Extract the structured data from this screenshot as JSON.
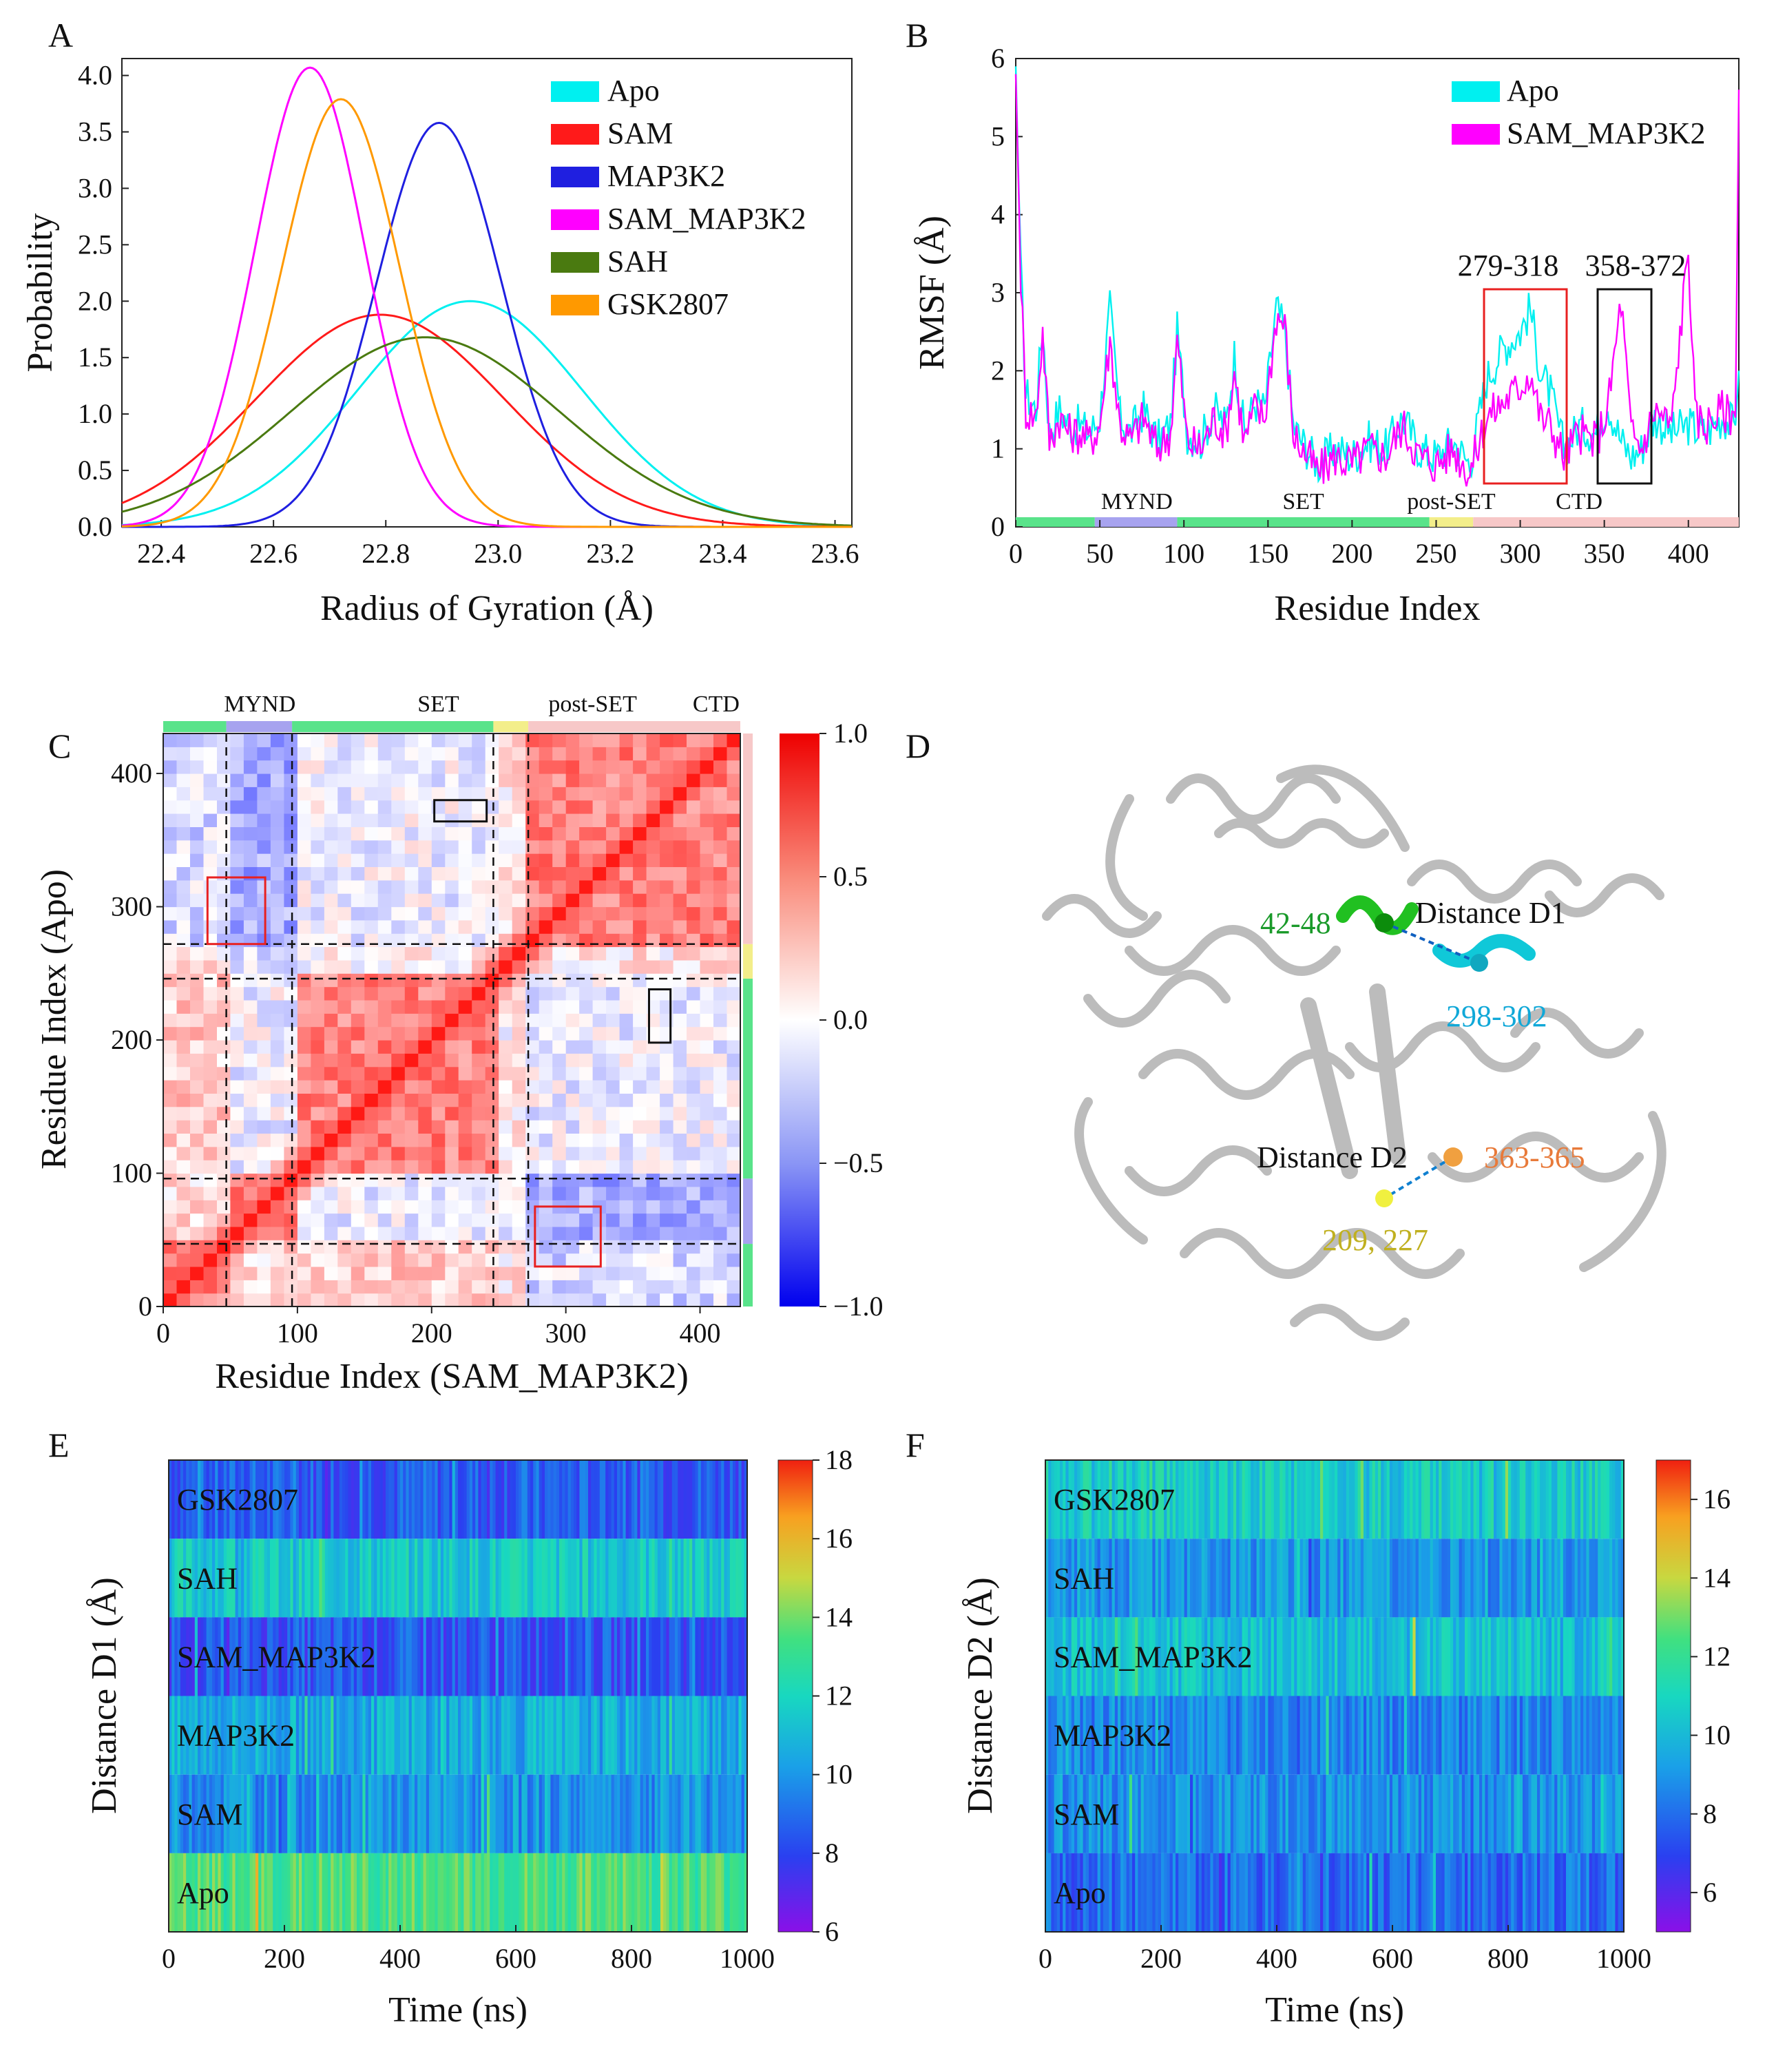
{
  "panel_letters": {
    "A": "A",
    "B": "B",
    "C": "C",
    "D": "D",
    "E": "E",
    "F": "F"
  },
  "colors": {
    "Apo": "#00f0f0",
    "SAM": "#ff1a1a",
    "MAP3K2": "#1f1fe0",
    "SAM_MAP3K2": "#ff00ff",
    "SAH": "#4a7a10",
    "GSK2807": "#ff9900",
    "dom_green": "#59e38a",
    "dom_mynd": "#a7a3ef",
    "dom_post": "#f3ee8a",
    "dom_ctd": "#f7c8c8"
  },
  "chart_data": [
    {
      "id": "A",
      "type": "line",
      "xlabel": "Radius of Gyration (Å)",
      "ylabel": "Probability",
      "xlim": [
        22.33,
        23.63
      ],
      "ylim": [
        0,
        4.15
      ],
      "xticks": [
        "22.4",
        "22.6",
        "22.8",
        "23.0",
        "23.2",
        "23.4",
        "23.6"
      ],
      "yticks": [
        "0.0",
        "0.5",
        "1.0",
        "1.5",
        "2.0",
        "2.5",
        "3.0",
        "3.5",
        "4.0"
      ],
      "series": [
        {
          "name": "Apo",
          "mean": 22.95,
          "sd": 0.2,
          "peak": 2.0
        },
        {
          "name": "SAM",
          "mean": 22.79,
          "sd": 0.22,
          "peak": 1.88
        },
        {
          "name": "MAP3K2",
          "mean": 22.895,
          "sd": 0.111,
          "peak": 3.58
        },
        {
          "name": "SAM_MAP3K2",
          "mean": 22.665,
          "sd": 0.098,
          "peak": 4.07
        },
        {
          "name": "SAH",
          "mean": 22.87,
          "sd": 0.24,
          "peak": 1.68
        },
        {
          "name": "GSK2807",
          "mean": 22.72,
          "sd": 0.105,
          "peak": 3.79
        }
      ]
    },
    {
      "id": "B",
      "type": "line",
      "xlabel": "Residue Index",
      "ylabel": "RMSF (Å)",
      "xlim": [
        0,
        430
      ],
      "ylim": [
        0,
        6
      ],
      "xticks": [
        "0",
        "50",
        "100",
        "150",
        "200",
        "250",
        "300",
        "350",
        "400"
      ],
      "yticks": [
        "0",
        "1",
        "2",
        "3",
        "4",
        "5",
        "6"
      ],
      "legend": [
        "Apo",
        "SAM_MAP3K2"
      ],
      "series": [
        {
          "name": "Apo",
          "profile": [
            [
              0,
              5.9
            ],
            [
              3,
              3.3
            ],
            [
              6,
              1.7
            ],
            [
              12,
              1.5
            ],
            [
              16,
              2.6
            ],
            [
              20,
              1.2
            ],
            [
              26,
              1.5
            ],
            [
              32,
              1.3
            ],
            [
              38,
              1.3
            ],
            [
              44,
              1.2
            ],
            [
              50,
              1.4
            ],
            [
              56,
              2.8
            ],
            [
              62,
              1.4
            ],
            [
              68,
              1.2
            ],
            [
              76,
              1.5
            ],
            [
              84,
              1.1
            ],
            [
              92,
              1.3
            ],
            [
              96,
              2.5
            ],
            [
              102,
              1.2
            ],
            [
              110,
              1.1
            ],
            [
              118,
              1.5
            ],
            [
              125,
              1.3
            ],
            [
              130,
              2.2
            ],
            [
              136,
              1.2
            ],
            [
              142,
              1.6
            ],
            [
              148,
              1.5
            ],
            [
              155,
              2.8
            ],
            [
              160,
              2.5
            ],
            [
              165,
              1.3
            ],
            [
              170,
              1.1
            ],
            [
              180,
              0.8
            ],
            [
              190,
              1.0
            ],
            [
              200,
              0.9
            ],
            [
              210,
              1.1
            ],
            [
              220,
              1.0
            ],
            [
              230,
              1.4
            ],
            [
              240,
              1.0
            ],
            [
              250,
              0.9
            ],
            [
              260,
              1.1
            ],
            [
              270,
              0.8
            ],
            [
              280,
              1.9
            ],
            [
              290,
              2.3
            ],
            [
              300,
              2.5
            ],
            [
              306,
              2.8
            ],
            [
              312,
              2.0
            ],
            [
              318,
              1.7
            ],
            [
              326,
              1.0
            ],
            [
              335,
              1.3
            ],
            [
              345,
              1.2
            ],
            [
              352,
              1.6
            ],
            [
              360,
              1.1
            ],
            [
              366,
              0.9
            ],
            [
              372,
              1.0
            ],
            [
              380,
              1.4
            ],
            [
              390,
              1.2
            ],
            [
              400,
              1.3
            ],
            [
              410,
              1.2
            ],
            [
              420,
              1.4
            ],
            [
              428,
              1.3
            ],
            [
              430,
              2.0
            ]
          ]
        },
        {
          "name": "SAM_MAP3K2",
          "profile": [
            [
              0,
              5.8
            ],
            [
              3,
              3.2
            ],
            [
              6,
              1.5
            ],
            [
              12,
              1.4
            ],
            [
              16,
              2.5
            ],
            [
              20,
              1.1
            ],
            [
              26,
              1.4
            ],
            [
              32,
              1.2
            ],
            [
              38,
              1.2
            ],
            [
              44,
              1.1
            ],
            [
              50,
              1.3
            ],
            [
              56,
              2.4
            ],
            [
              62,
              1.3
            ],
            [
              68,
              1.1
            ],
            [
              76,
              1.4
            ],
            [
              84,
              1.0
            ],
            [
              92,
              1.2
            ],
            [
              96,
              2.4
            ],
            [
              102,
              1.1
            ],
            [
              110,
              1.0
            ],
            [
              118,
              1.4
            ],
            [
              125,
              1.2
            ],
            [
              130,
              2.0
            ],
            [
              136,
              1.1
            ],
            [
              142,
              1.5
            ],
            [
              148,
              1.4
            ],
            [
              155,
              2.7
            ],
            [
              160,
              2.6
            ],
            [
              165,
              1.2
            ],
            [
              170,
              1.0
            ],
            [
              180,
              0.7
            ],
            [
              190,
              0.9
            ],
            [
              200,
              0.8
            ],
            [
              210,
              1.0
            ],
            [
              220,
              0.9
            ],
            [
              230,
              1.3
            ],
            [
              240,
              0.9
            ],
            [
              250,
              0.8
            ],
            [
              260,
              1.0
            ],
            [
              270,
              0.7
            ],
            [
              280,
              1.4
            ],
            [
              290,
              1.6
            ],
            [
              300,
              1.8
            ],
            [
              306,
              2.0
            ],
            [
              312,
              1.4
            ],
            [
              318,
              1.3
            ],
            [
              326,
              0.9
            ],
            [
              335,
              1.2
            ],
            [
              345,
              1.1
            ],
            [
              352,
              1.5
            ],
            [
              360,
              2.9
            ],
            [
              366,
              1.2
            ],
            [
              372,
              1.0
            ],
            [
              380,
              1.5
            ],
            [
              390,
              1.3
            ],
            [
              400,
              3.6
            ],
            [
              404,
              1.4
            ],
            [
              410,
              1.3
            ],
            [
              420,
              1.5
            ],
            [
              428,
              1.4
            ],
            [
              430,
              5.6
            ]
          ]
        }
      ],
      "annotations": [
        "279-318",
        "358-372"
      ],
      "domains": [
        "MYND",
        "SET",
        "post-SET",
        "CTD"
      ]
    },
    {
      "id": "C",
      "type": "heatmap",
      "xlabel": "Residue Index (SAM_MAP3K2)",
      "ylabel": "Residue Index (Apo)",
      "xlim": [
        0,
        430
      ],
      "ylim": [
        0,
        430
      ],
      "xticks": [
        "0",
        "100",
        "200",
        "300",
        "400"
      ],
      "yticks": [
        "0",
        "100",
        "200",
        "300",
        "400"
      ],
      "colorbar": {
        "min": -1.0,
        "max": 1.0,
        "ticks": [
          "1.0",
          "0.5",
          "0.0",
          "−0.5",
          "−1.0"
        ]
      },
      "domains": [
        "MYND",
        "SET",
        "post-SET",
        "CTD"
      ],
      "boundaries": [
        47,
        96,
        246,
        272
      ]
    },
    {
      "id": "E",
      "type": "heatmap",
      "xlabel": "Time (ns)",
      "ylabel": "Distance D1 (Å)",
      "xlim": [
        0,
        1000
      ],
      "xticks": [
        "0",
        "200",
        "400",
        "600",
        "800",
        "1000"
      ],
      "rows": [
        "GSK2807",
        "SAH",
        "SAM_MAP3K2",
        "MAP3K2",
        "SAM",
        "Apo"
      ],
      "row_means": [
        8.6,
        11.5,
        8.4,
        10.6,
        9.9,
        13.4
      ],
      "colorbar": {
        "min": 6,
        "max": 18,
        "ticks": [
          "18",
          "16",
          "14",
          "12",
          "10",
          "8",
          "6"
        ]
      }
    },
    {
      "id": "F",
      "type": "heatmap",
      "xlabel": "Time (ns)",
      "ylabel": "Distance D2 (Å)",
      "xlim": [
        0,
        1000
      ],
      "xticks": [
        "0",
        "200",
        "400",
        "600",
        "800",
        "1000"
      ],
      "rows": [
        "GSK2807",
        "SAH",
        "SAM_MAP3K2",
        "MAP3K2",
        "SAM",
        "Apo"
      ],
      "row_means": [
        10.6,
        9.0,
        10.2,
        8.6,
        8.9,
        7.9
      ],
      "colorbar": {
        "min": 5,
        "max": 17,
        "ticks": [
          "16",
          "14",
          "12",
          "10",
          "8",
          "6"
        ]
      }
    }
  ],
  "structure_labels": {
    "d1": "Distance D1",
    "d2": "Distance D2",
    "r1": "42-48",
    "r2": "298-302",
    "r3": "363-365",
    "r4": "209, 227"
  }
}
